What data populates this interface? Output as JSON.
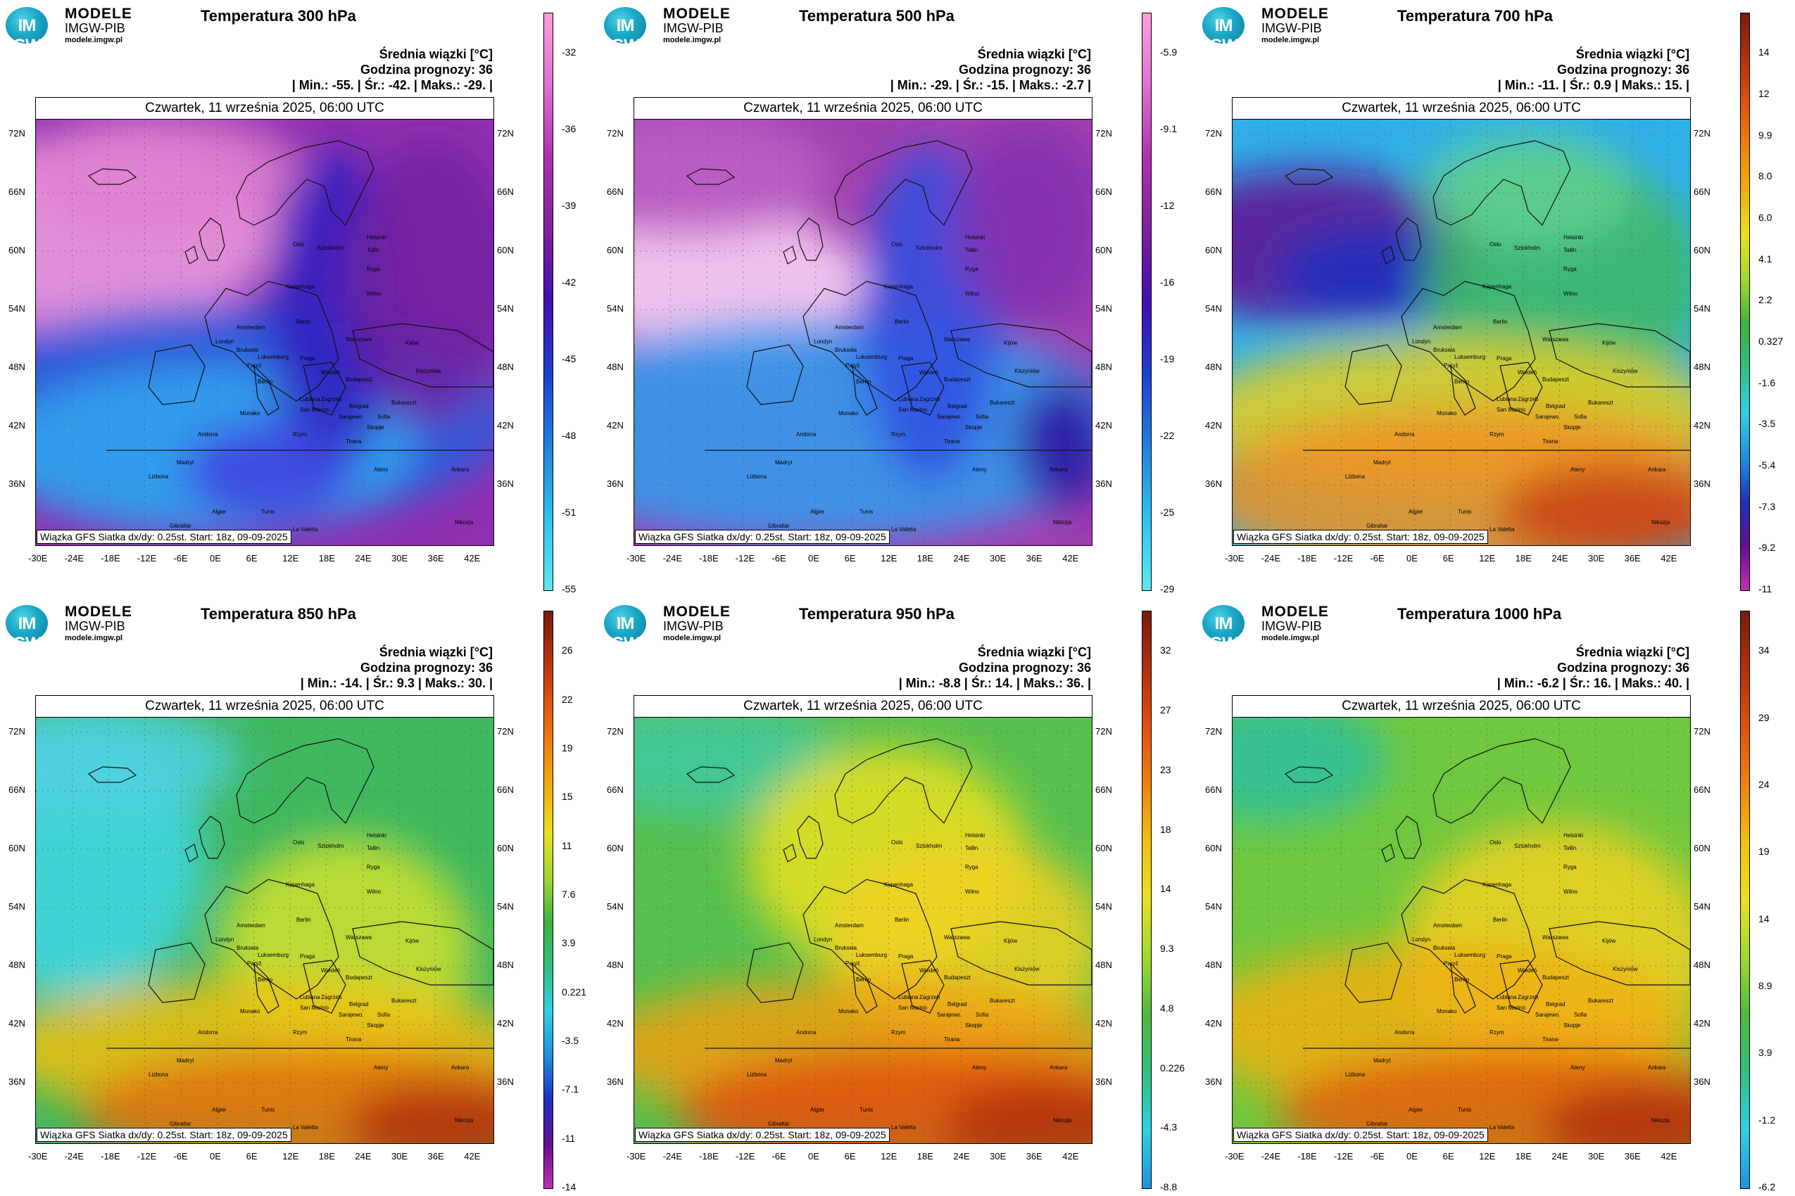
{
  "logo": {
    "badge": "IM GW",
    "line1": "MODELE",
    "line2": "IMGW-PIB",
    "line3": "modele.imgw.pl"
  },
  "common": {
    "subtitle": "Średnia wiązki [°C]",
    "forecast_hour": "Godzina prognozy: 36",
    "date": "Czwartek, 11 września 2025, 06:00 UTC",
    "source": "Wiązka GFS Siatka dx/dy: 0.25st. Start: 18z, 09-09-2025",
    "lat_labels": [
      "72N",
      "66N",
      "60N",
      "54N",
      "48N",
      "42N",
      "36N"
    ],
    "lon_labels": [
      "-30E",
      "-24E",
      "-18E",
      "-12E",
      "-6E",
      "0E",
      "6E",
      "12E",
      "18E",
      "24E",
      "30E",
      "36E",
      "42E"
    ],
    "cities": [
      "Helsinki",
      "Sztokholm",
      "Tallin",
      "Ryga",
      "Wilno",
      "Kopenhaga",
      "Amsterdam",
      "Berlin",
      "Warszawa",
      "Londyn",
      "Bruksela",
      "Paryż",
      "Luksemburg",
      "Praga",
      "Wiedeń",
      "Budapeszt",
      "Kiszyniów",
      "Kijów",
      "Berno",
      "Lublana",
      "Zagrzeb",
      "Belgrad",
      "San Marino",
      "Sarajewo",
      "Bukareszt",
      "Monako",
      "Rzym",
      "Andorra",
      "Madryt",
      "Lizbona",
      "Algier",
      "Tunis",
      "Gibraltar",
      "Rabat",
      "La Valetta",
      "Skopje",
      "Sofia",
      "Tirana",
      "Ateny",
      "Ankara",
      "Oslo",
      "Nikozja"
    ]
  },
  "panels": [
    {
      "title": "Temperatura 300 hPa",
      "stats": "| Min.: -55. | Śr.: -42. | Maks.: -29. |",
      "colorbar": [
        "-32",
        "-36",
        "-39",
        "-42",
        "-45",
        "-48",
        "-51",
        "-55"
      ],
      "scheme": "cold",
      "variant": 300
    },
    {
      "title": "Temperatura 500 hPa",
      "stats": "| Min.: -29. | Śr.: -15. | Maks.: -2.7 |",
      "colorbar": [
        "-5.9",
        "-9.1",
        "-12",
        "-16",
        "-19",
        "-22",
        "-25",
        "-29"
      ],
      "scheme": "cold",
      "variant": 500
    },
    {
      "title": "Temperatura 700 hPa",
      "stats": "| Min.: -11. | Śr.: 0.9 | Maks.: 15. |",
      "colorbar": [
        "14",
        "12",
        "9.9",
        "8.0",
        "6.0",
        "4.1",
        "2.2",
        "0.327",
        "-1.6",
        "-3.5",
        "-5.4",
        "-7.3",
        "-9.2",
        "-11"
      ],
      "scheme": "full",
      "variant": 700
    },
    {
      "title": "Temperatura 850 hPa",
      "stats": "| Min.: -14. | Śr.: 9.3 | Maks.: 30. |",
      "colorbar": [
        "26",
        "22",
        "19",
        "15",
        "11",
        "7.6",
        "3.9",
        "0.221",
        "-3.5",
        "-7.1",
        "-11",
        "-14"
      ],
      "scheme": "full",
      "variant": 850
    },
    {
      "title": "Temperatura 950 hPa",
      "stats": "| Min.: -8.8 | Śr.: 14. | Maks.: 36. |",
      "colorbar": [
        "32",
        "27",
        "23",
        "18",
        "14",
        "9.3",
        "4.8",
        "0.226",
        "-4.3",
        "-8.8"
      ],
      "scheme": "warm",
      "variant": 950
    },
    {
      "title": "Temperatura 1000 hPa",
      "stats": "| Min.: -6.2 | Śr.: 16. | Maks.: 40. |",
      "colorbar": [
        "34",
        "29",
        "24",
        "19",
        "14",
        "8.9",
        "3.9",
        "-1.2",
        "-6.2"
      ],
      "scheme": "warm",
      "variant": 1000
    }
  ]
}
